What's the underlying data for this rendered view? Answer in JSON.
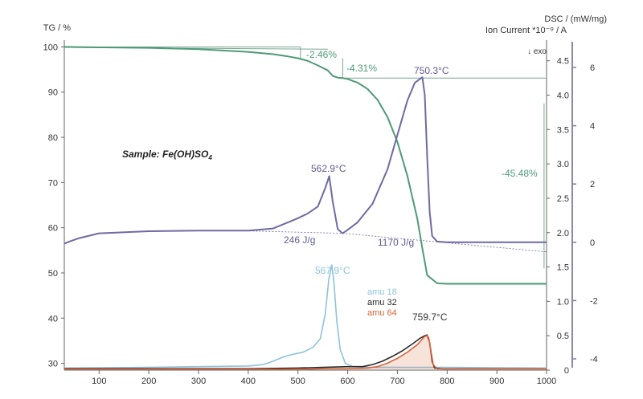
{
  "chart_data": {
    "type": "line",
    "xlabel": "",
    "x_ticks": [
      "100",
      "200",
      "300",
      "400",
      "500",
      "600",
      "700",
      "800",
      "900",
      "1000"
    ],
    "xlim": [
      30,
      1000
    ],
    "axes": {
      "tg": {
        "label": "TG / %",
        "ticks": [
          "100",
          "90",
          "80",
          "70",
          "60",
          "50",
          "40",
          "30"
        ],
        "ylim": [
          28.5,
          101.5
        ]
      },
      "dsc": {
        "label": "DSC / (mW/mg)",
        "exo_label": "↓ exo",
        "ticks": [
          "4.5",
          "4.0",
          "3.5",
          "3.0",
          "2.5",
          "2.0",
          "1.5",
          "1.0",
          "0.5",
          "0"
        ],
        "ylim": [
          0,
          4.8
        ]
      },
      "ion": {
        "label": "Ion Current *10⁻⁹ / A",
        "ticks": [
          "6",
          "4",
          "2",
          "0",
          "-2",
          "-4"
        ],
        "ylim": [
          -4,
          6.5
        ]
      }
    },
    "colors": {
      "tg": "#4e9a78",
      "dsc": "#6e6aa2",
      "amu18": "#8ec3dc",
      "amu32": "#2a2a2a",
      "amu64": "#d9623a",
      "axis": "#666666",
      "ion_axis": "#7a7aa6",
      "helper": "#7aa893"
    },
    "title_note": "Sample: Fe(OH)SO",
    "title_subscript": "4",
    "annotations": {
      "tg_step1": "-2.46%",
      "tg_step2": "-4.31%",
      "tg_step3": "-45.48%",
      "dsc_peak1": "562.9°C",
      "dsc_peak2": "750.3°C",
      "enthalpy1": "246 J/g",
      "enthalpy2": "1170 J/g",
      "ms_peak1": "567.9°C",
      "ms_peak2": "759.7°C"
    },
    "legend": [
      "amu 18",
      "amu 32",
      "amu 64"
    ],
    "series": [
      {
        "name": "TG",
        "axis": "tg",
        "x": [
          30,
          100,
          200,
          300,
          400,
          450,
          480,
          500,
          520,
          540,
          560,
          570,
          580,
          590,
          600,
          620,
          640,
          660,
          680,
          700,
          720,
          740,
          750,
          760,
          780,
          800,
          1000
        ],
        "y": [
          100,
          99.9,
          99.8,
          99.5,
          98.9,
          98.4,
          97.9,
          97.5,
          96.9,
          95.9,
          94.8,
          93.6,
          93.2,
          93.1,
          92.9,
          92.1,
          90.7,
          88.3,
          84.5,
          79.0,
          71.5,
          62.0,
          55.5,
          49.5,
          47.7,
          47.6,
          47.6
        ]
      },
      {
        "name": "DSC",
        "axis": "dsc",
        "x": [
          30,
          40,
          60,
          100,
          200,
          300,
          400,
          450,
          480,
          500,
          520,
          540,
          555,
          562.9,
          570,
          580,
          590,
          600,
          620,
          650,
          680,
          700,
          720,
          735,
          750.3,
          755,
          760,
          765,
          770,
          780,
          800,
          1000
        ],
        "y": [
          1.84,
          1.87,
          1.92,
          1.99,
          2.02,
          2.03,
          2.03,
          2.06,
          2.15,
          2.21,
          2.28,
          2.38,
          2.65,
          2.82,
          2.45,
          2.05,
          1.99,
          2.04,
          2.15,
          2.42,
          2.92,
          3.42,
          3.92,
          4.18,
          4.26,
          4.0,
          3.1,
          2.3,
          1.95,
          1.87,
          1.86,
          1.86
        ]
      },
      {
        "name": "amu 18",
        "axis": "dsc",
        "x": [
          30,
          200,
          300,
          400,
          430,
          450,
          470,
          490,
          510,
          530,
          545,
          555,
          562,
          567.9,
          572,
          578,
          585,
          595,
          610,
          650,
          700,
          750,
          800,
          1000
        ],
        "y": [
          0.03,
          0.04,
          0.05,
          0.06,
          0.08,
          0.13,
          0.19,
          0.23,
          0.26,
          0.33,
          0.46,
          0.82,
          1.32,
          1.53,
          1.3,
          0.72,
          0.3,
          0.1,
          0.05,
          0.04,
          0.04,
          0.04,
          0.04,
          0.03
        ]
      },
      {
        "name": "amu 32",
        "axis": "dsc",
        "x": [
          30,
          400,
          500,
          550,
          600,
          630,
          650,
          670,
          690,
          710,
          730,
          745,
          755,
          759.7,
          765,
          770,
          775,
          790,
          1000
        ],
        "y": [
          0.02,
          0.02,
          0.03,
          0.04,
          0.05,
          0.05,
          0.08,
          0.13,
          0.2,
          0.28,
          0.38,
          0.46,
          0.5,
          0.51,
          0.4,
          0.12,
          0.03,
          0.02,
          0.02
        ]
      },
      {
        "name": "amu 64",
        "axis": "dsc",
        "x": [
          30,
          400,
          500,
          550,
          600,
          640,
          660,
          680,
          700,
          720,
          740,
          750,
          755,
          759.7,
          763,
          767,
          772,
          780,
          1000
        ],
        "y": [
          0.01,
          0.01,
          0.01,
          0.02,
          0.02,
          0.03,
          0.05,
          0.1,
          0.17,
          0.26,
          0.37,
          0.45,
          0.49,
          0.5,
          0.47,
          0.3,
          0.08,
          0.02,
          0.02
        ]
      }
    ]
  }
}
